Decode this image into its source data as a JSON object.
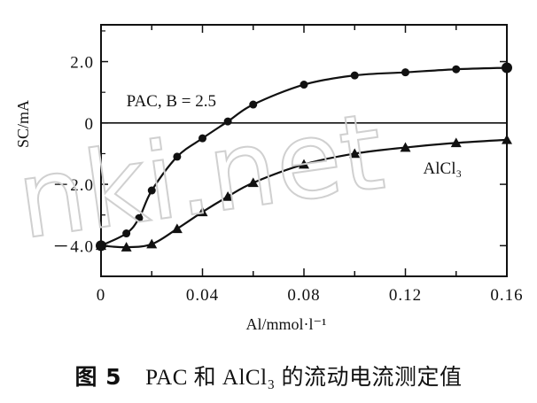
{
  "chart_data": {
    "type": "line",
    "xlabel": "Al/mmol·l⁻¹",
    "ylabel": "SC/mA",
    "xlim": [
      0,
      0.16
    ],
    "ylim": [
      -5.0,
      3.2
    ],
    "x_ticks": [
      0,
      0.02,
      0.04,
      0.06,
      0.08,
      0.1,
      0.12,
      0.14,
      0.16
    ],
    "x_tick_labels": [
      "0",
      "",
      "0.04",
      "",
      "0.08",
      "",
      "0.12",
      "",
      "0.16"
    ],
    "y_ticks": [
      -4.0,
      -2.0,
      0,
      2.0
    ],
    "y_tick_labels": [
      "－4.0",
      "－2.0",
      "0",
      "2.0"
    ],
    "zero_line": true,
    "grid": false,
    "series": [
      {
        "name": "PAC, B = 2.5",
        "marker": "circle",
        "x": [
          0,
          0.01,
          0.015,
          0.02,
          0.03,
          0.04,
          0.05,
          0.06,
          0.08,
          0.1,
          0.12,
          0.14,
          0.16
        ],
        "y": [
          -4.0,
          -3.6,
          -3.1,
          -2.2,
          -1.1,
          -0.5,
          0.05,
          0.6,
          1.25,
          1.55,
          1.65,
          1.75,
          1.8
        ]
      },
      {
        "name": "AlCl3",
        "marker": "triangle",
        "x": [
          0,
          0.01,
          0.02,
          0.03,
          0.04,
          0.05,
          0.06,
          0.08,
          0.1,
          0.12,
          0.14,
          0.16
        ],
        "y": [
          -4.0,
          -4.05,
          -3.95,
          -3.45,
          -2.9,
          -2.4,
          -1.95,
          -1.35,
          -1.0,
          -0.8,
          -0.65,
          -0.55
        ]
      }
    ],
    "annotations": [
      {
        "text": "PAC, B = 2.5",
        "x": 0.01,
        "y": 0.55
      },
      {
        "text": "AlCl₃",
        "x": 0.127,
        "y": -1.65
      }
    ]
  },
  "caption": {
    "figure_number": "图 5",
    "text": "PAC 和 AlCl₃ 的流动电流测定值"
  },
  "watermark": "nki.net"
}
